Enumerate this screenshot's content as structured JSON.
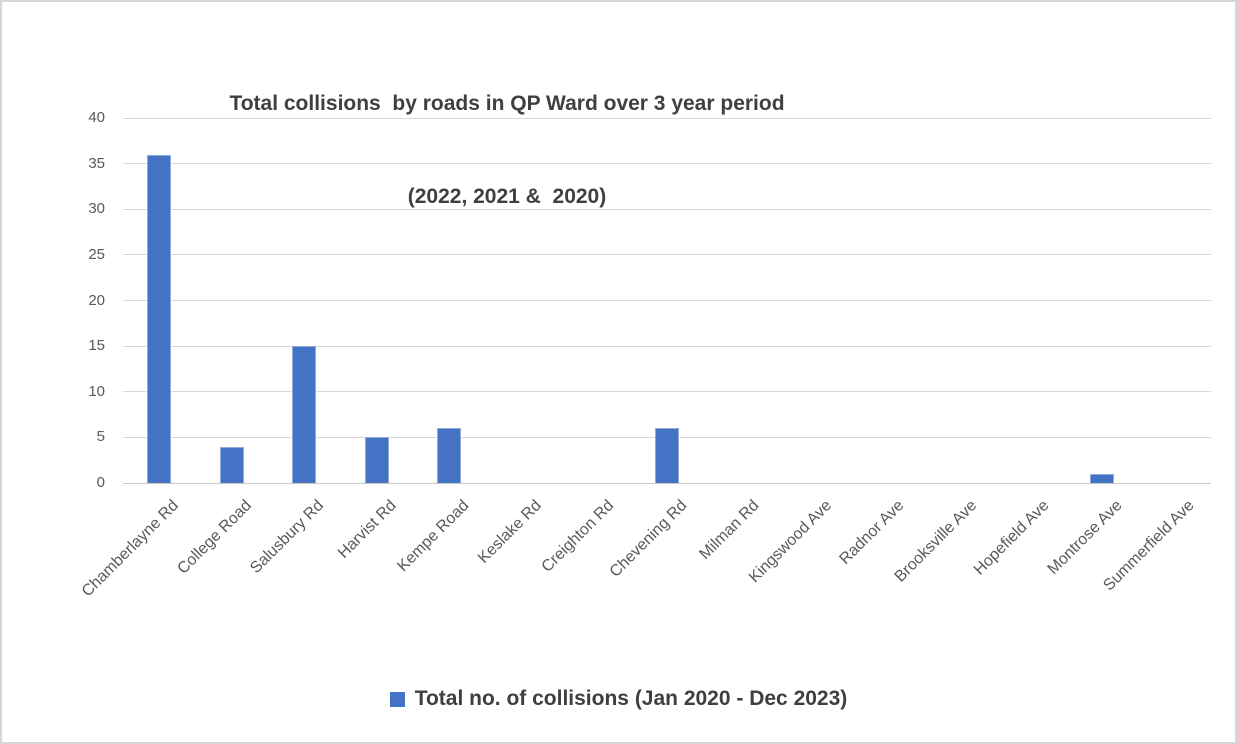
{
  "chart_data": {
    "type": "bar",
    "title_line1": "Total collisions  by roads in QP Ward over 3 year period",
    "title_line2": "(2022, 2021 &  2020)",
    "categories": [
      "Chamberlayne Rd",
      "College Road",
      "Salusbury Rd",
      "Harvist Rd",
      "Kempe Road",
      "Keslake Rd",
      "Creighton Rd",
      "Chevening Rd",
      "Milman Rd",
      "Kingswood Ave",
      "Radnor Ave",
      "Brooksville Ave",
      "Hopefield Ave",
      "Montrose Ave",
      "Summerfield Ave"
    ],
    "series": [
      {
        "name": "Total no. of collisions (Jan 2020 - Dec 2023)",
        "values": [
          36,
          4,
          15,
          5,
          6,
          0,
          0,
          6,
          0,
          0,
          0,
          0,
          0,
          1,
          0
        ]
      }
    ],
    "xlabel": "",
    "ylabel": "",
    "ylim": [
      0,
      40
    ],
    "yticks": [
      0,
      5,
      10,
      15,
      20,
      25,
      30,
      35,
      40
    ],
    "grid": true,
    "legend_position": "bottom",
    "bar_color": "#4472C4",
    "bar_border_color": "#8FAADC",
    "gridline_color": "#D9D9D9",
    "axis_text_color": "#595959",
    "title_color": "#3F3F3F"
  }
}
